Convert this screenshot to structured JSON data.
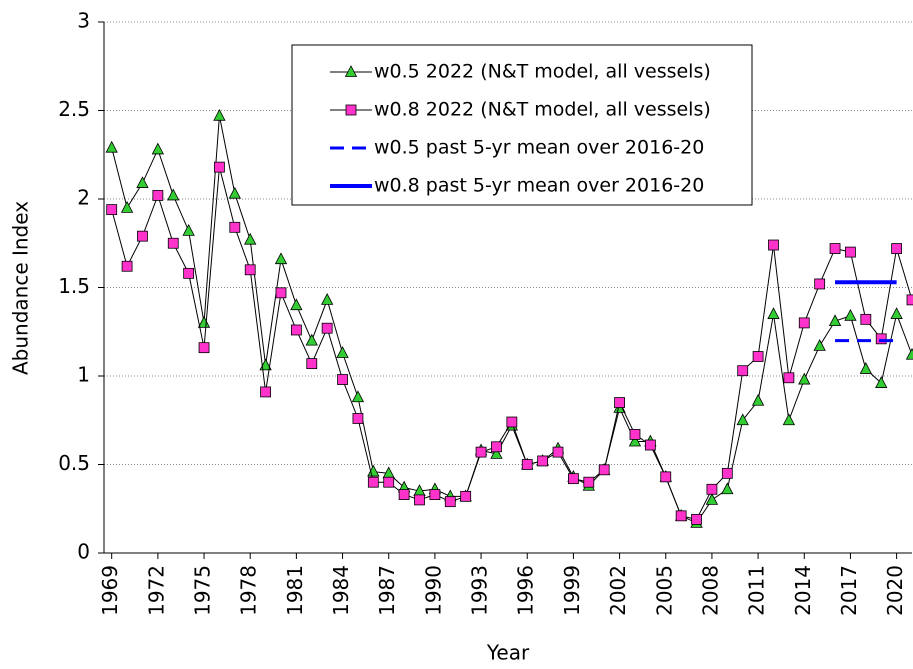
{
  "chart_data": {
    "type": "line",
    "x_label": "Year",
    "y_label": "Abundance Index",
    "x": [
      1969,
      1970,
      1971,
      1972,
      1973,
      1974,
      1975,
      1976,
      1977,
      1978,
      1979,
      1980,
      1981,
      1982,
      1983,
      1984,
      1985,
      1986,
      1987,
      1988,
      1989,
      1990,
      1991,
      1992,
      1993,
      1994,
      1995,
      1996,
      1997,
      1998,
      1999,
      2000,
      2001,
      2002,
      2003,
      2004,
      2005,
      2006,
      2007,
      2008,
      2009,
      2010,
      2011,
      2012,
      2013,
      2014,
      2015,
      2016,
      2017,
      2018,
      2019,
      2020,
      2021
    ],
    "xlim": [
      1968.5,
      2021
    ],
    "xticks": [
      1969,
      1972,
      1975,
      1978,
      1981,
      1984,
      1987,
      1990,
      1993,
      1996,
      1999,
      2002,
      2005,
      2008,
      2011,
      2014,
      2017,
      2020
    ],
    "ylim": [
      0,
      3
    ],
    "yticks": [
      0,
      0.5,
      1,
      1.5,
      2,
      2.5,
      3
    ],
    "grid": true,
    "series": [
      {
        "name": "w0.5 2022 (N&T model, all vessels)",
        "color": "#33cc33",
        "marker": "triangle",
        "values": [
          2.29,
          1.95,
          2.09,
          2.28,
          2.02,
          1.82,
          1.3,
          2.47,
          2.03,
          1.77,
          1.06,
          1.66,
          1.4,
          1.2,
          1.43,
          1.13,
          0.88,
          0.46,
          0.45,
          0.37,
          0.35,
          0.36,
          0.32,
          0.32,
          0.58,
          0.56,
          0.72,
          0.5,
          0.52,
          0.59,
          0.43,
          0.38,
          0.47,
          0.82,
          0.63,
          0.63,
          0.43,
          0.21,
          0.17,
          0.3,
          0.36,
          0.75,
          0.86,
          1.35,
          0.75,
          0.98,
          1.17,
          1.31,
          1.34,
          1.04,
          0.96,
          1.35,
          1.12
        ]
      },
      {
        "name": "w0.8 2022 (N&T model, all vessels)",
        "color": "#ff33cc",
        "marker": "square",
        "values": [
          1.94,
          1.62,
          1.79,
          2.02,
          1.75,
          1.58,
          1.16,
          2.18,
          1.84,
          1.6,
          0.91,
          1.47,
          1.26,
          1.07,
          1.27,
          0.98,
          0.76,
          0.4,
          0.4,
          0.33,
          0.3,
          0.33,
          0.29,
          0.32,
          0.57,
          0.6,
          0.74,
          0.5,
          0.52,
          0.57,
          0.42,
          0.4,
          0.47,
          0.85,
          0.67,
          0.61,
          0.43,
          0.21,
          0.19,
          0.36,
          0.45,
          1.03,
          1.11,
          1.74,
          0.99,
          1.3,
          1.52,
          1.72,
          1.7,
          1.32,
          1.21,
          1.72,
          1.43
        ]
      },
      {
        "name": "w0.5 past 5-yr mean over 2016-20",
        "color": "#0000ff",
        "dashed": true,
        "x": [
          2016,
          2020
        ],
        "values": [
          1.2,
          1.2
        ]
      },
      {
        "name": "w0.8 past 5-yr mean over 2016-20",
        "color": "#0000ff",
        "dashed": false,
        "x": [
          2016,
          2020
        ],
        "values": [
          1.53,
          1.53
        ]
      }
    ]
  }
}
